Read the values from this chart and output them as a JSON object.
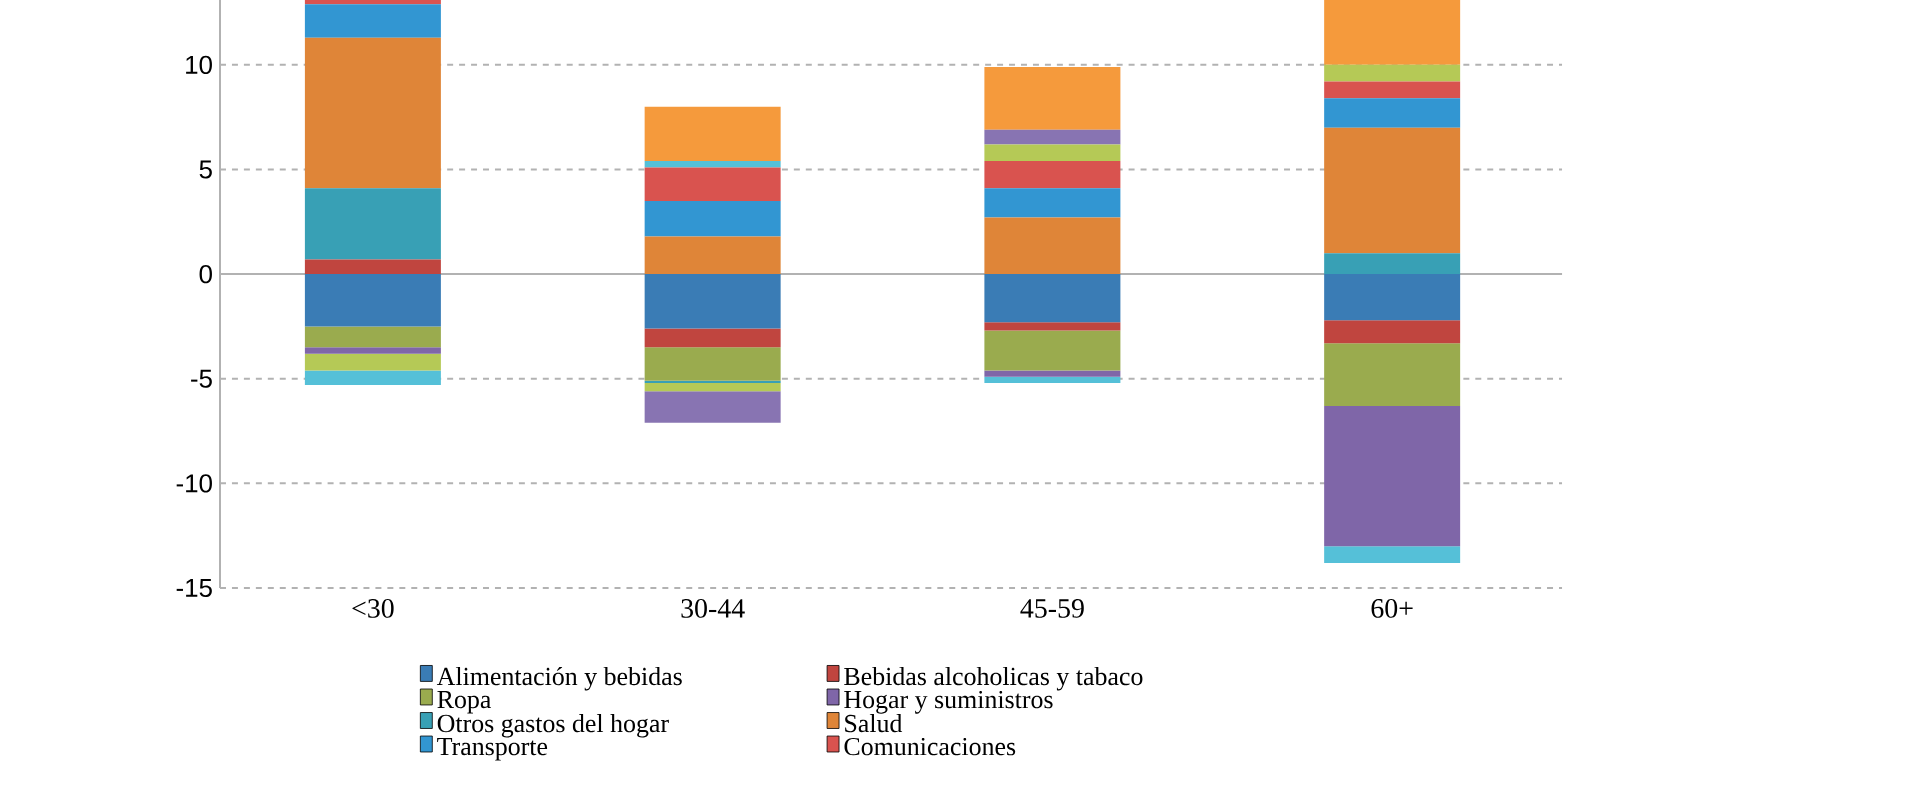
{
  "chart_data": {
    "type": "bar",
    "stacked": true,
    "categories": [
      "<30",
      "30-44",
      "45-59",
      "60+"
    ],
    "series": [
      {
        "name": "Alimentación y bebidas",
        "color": "#3a7cb5",
        "values": [
          -2.5,
          -2.6,
          -2.3,
          -2.2
        ]
      },
      {
        "name": "Bebidas alcoholicas y tabaco",
        "color": "#c0453f",
        "values": [
          0.7,
          -0.9,
          -0.4,
          -1.1
        ]
      },
      {
        "name": "Ropa",
        "color": "#9aab4e",
        "values": [
          -1.0,
          -1.6,
          -1.9,
          -3.0
        ]
      },
      {
        "name": "Hogar y suministros",
        "color": "#7f66a8",
        "values": [
          -0.3,
          0,
          -0.3,
          -6.7
        ]
      },
      {
        "name": "Otros gastos del hogar",
        "color": "#38a0b5",
        "values": [
          3.4,
          -0.1,
          0,
          1.0
        ]
      },
      {
        "name": "Salud",
        "color": "#df8538",
        "values": [
          7.2,
          1.8,
          2.7,
          6.0
        ]
      },
      {
        "name": "Transporte",
        "color": "#3296d2",
        "values": [
          1.6,
          1.7,
          1.4,
          1.4
        ]
      },
      {
        "name": "Comunicaciones",
        "color": "#d9534f",
        "values": [
          0.2,
          1.6,
          1.3,
          0.8
        ]
      },
      {
        "color": "#b5c956",
        "values": [
          -0.8,
          -0.4,
          0.8,
          0.8
        ]
      },
      {
        "color": "#8874b2",
        "values": [
          0,
          -1.5,
          0.7,
          0
        ]
      },
      {
        "color": "#55c0d8",
        "values": [
          -0.7,
          0.3,
          -0.3,
          -0.8
        ]
      },
      {
        "color": "#f59a3c",
        "values": [
          0,
          2.6,
          3.0,
          3.1
        ]
      }
    ],
    "ylim": [
      -15,
      13.1
    ],
    "yticks": [
      -15,
      -10,
      -5,
      0,
      5,
      10
    ],
    "grid": "y",
    "legend": "bottom"
  }
}
